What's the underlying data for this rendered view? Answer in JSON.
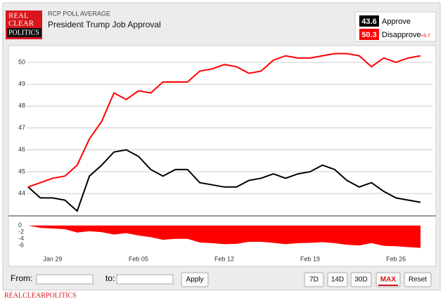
{
  "header": {
    "logo": [
      "REAL",
      "CLEAR",
      "POLITICS"
    ],
    "source": "RCP POLL AVERAGE",
    "title": "President Trump Job Approval"
  },
  "legend": {
    "values": [
      43.6,
      50.3
    ],
    "spread": "+6.7"
  },
  "chart_data": [
    {
      "type": "line",
      "categories": [
        "Jan 27",
        "Jan 28",
        "Jan 29",
        "Jan 30",
        "Jan 31",
        "Feb 01",
        "Feb 02",
        "Feb 03",
        "Feb 04",
        "Feb 05",
        "Feb 06",
        "Feb 07",
        "Feb 08",
        "Feb 09",
        "Feb 10",
        "Feb 11",
        "Feb 12",
        "Feb 13",
        "Feb 14",
        "Feb 15",
        "Feb 16",
        "Feb 17",
        "Feb 18",
        "Feb 19",
        "Feb 20",
        "Feb 21",
        "Feb 22",
        "Feb 23",
        "Feb 24",
        "Feb 25",
        "Feb 26",
        "Feb 27",
        "Feb 28"
      ],
      "xticks": [
        "Jan 29",
        "Feb 05",
        "Feb 12",
        "Feb 19",
        "Feb 26"
      ],
      "series": [
        {
          "name": "Approve",
          "color": "#000000",
          "values": [
            44.3,
            43.8,
            43.8,
            43.7,
            43.2,
            44.8,
            45.3,
            45.9,
            46.0,
            45.7,
            45.1,
            44.8,
            45.1,
            45.1,
            44.5,
            44.4,
            44.3,
            44.3,
            44.6,
            44.7,
            44.9,
            44.7,
            44.9,
            45.0,
            45.3,
            45.1,
            44.6,
            44.3,
            44.5,
            44.1,
            43.8,
            43.7,
            43.6
          ]
        },
        {
          "name": "Disapprove",
          "color": "#ff0000",
          "values": [
            44.3,
            44.5,
            44.7,
            44.8,
            45.3,
            46.5,
            47.3,
            48.6,
            48.3,
            48.7,
            48.6,
            49.1,
            49.1,
            49.1,
            49.6,
            49.7,
            49.9,
            49.8,
            49.5,
            49.6,
            50.1,
            50.3,
            50.2,
            50.2,
            50.3,
            50.4,
            50.4,
            50.3,
            49.8,
            50.2,
            50.0,
            50.2,
            50.3
          ]
        }
      ],
      "ylim": [
        43.3,
        50.8
      ],
      "yticks": [
        44,
        45,
        46,
        47,
        48,
        49,
        50
      ],
      "grid": true
    },
    {
      "type": "area",
      "color": "#ff0000",
      "values": [
        0.0,
        -0.7,
        -0.9,
        -1.1,
        -2.1,
        -1.7,
        -2.0,
        -2.7,
        -2.3,
        -3.0,
        -3.5,
        -4.3,
        -4.0,
        -4.0,
        -5.1,
        -5.3,
        -5.6,
        -5.5,
        -4.9,
        -4.9,
        -5.2,
        -5.6,
        -5.3,
        -5.2,
        -5.0,
        -5.3,
        -5.8,
        -6.0,
        -5.3,
        -6.1,
        -6.2,
        -6.5,
        -6.7
      ],
      "ylim": [
        -7,
        1
      ],
      "yticks": [
        0,
        -2,
        -4,
        -6
      ]
    }
  ],
  "controls": {
    "from": "From:",
    "to": "to:",
    "apply": "Apply",
    "ranges": [
      "7D",
      "14D",
      "30D",
      "MAX",
      "Reset"
    ],
    "active": "MAX"
  },
  "footer": "REALCLEARPOLITICS"
}
